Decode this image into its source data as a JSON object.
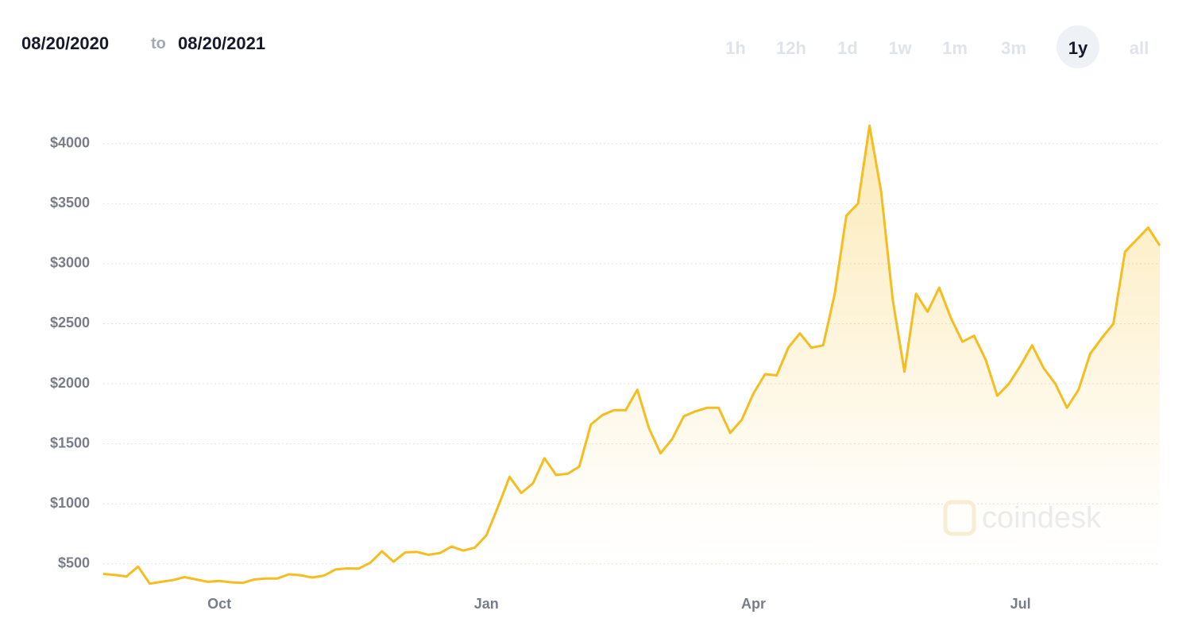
{
  "header": {
    "from": "08/20/2020",
    "to": "to",
    "until": "08/20/2021"
  },
  "ranges": [
    "1h",
    "12h",
    "1d",
    "1w",
    "1m",
    "3m",
    "1y",
    "all"
  ],
  "watermark": "coindesk",
  "chart_data": {
    "type": "line",
    "categories": [
      null,
      null,
      null,
      null,
      null,
      null,
      null,
      null,
      null,
      null,
      "Oct",
      null,
      null,
      null,
      null,
      null,
      null,
      null,
      null,
      null,
      null,
      null,
      null,
      null,
      null,
      null,
      null,
      null,
      null,
      null,
      null,
      null,
      null,
      "Jan",
      null,
      null,
      null,
      null,
      null,
      null,
      null,
      null,
      null,
      null,
      null,
      null,
      null,
      null,
      null,
      null,
      null,
      null,
      null,
      null,
      null,
      null,
      "Apr",
      null,
      null,
      null,
      null,
      null,
      null,
      null,
      null,
      null,
      null,
      null,
      null,
      null,
      null,
      null,
      null,
      null,
      null,
      null,
      null,
      null,
      null,
      "Jul",
      null,
      null,
      null,
      null,
      null,
      null,
      null,
      null,
      null,
      null,
      null,
      null
    ],
    "values": [
      416,
      408,
      395,
      477,
      335,
      350,
      365,
      389,
      370,
      350,
      358,
      346,
      341,
      370,
      378,
      378,
      413,
      405,
      386,
      402,
      453,
      462,
      460,
      510,
      605,
      518,
      595,
      600,
      575,
      590,
      645,
      610,
      635,
      738,
      975,
      1225,
      1090,
      1170,
      1380,
      1240,
      1250,
      1310,
      1660,
      1740,
      1780,
      1780,
      1950,
      1630,
      1420,
      1540,
      1730,
      1770,
      1800,
      1800,
      1590,
      1700,
      1920,
      2080,
      2070,
      2300,
      2420,
      2300,
      2320,
      2750,
      3400,
      3500,
      4150,
      3600,
      2700,
      2100,
      2750,
      2600,
      2800,
      2550,
      2350,
      2400,
      2200,
      1900,
      2000,
      2150,
      2320,
      2130,
      2000,
      1800,
      1950,
      2250,
      2380,
      2500,
      3100,
      3200,
      3300,
      3150
    ],
    "color": "#f5bd1f",
    "ylim": [
      300,
      4200
    ],
    "yticks": [
      {
        "value": 500,
        "label": "$500"
      },
      {
        "value": 1000,
        "label": "$1000"
      },
      {
        "value": 1500,
        "label": "$1500"
      },
      {
        "value": 2000,
        "label": "$2000"
      },
      {
        "value": 2500,
        "label": "$2500"
      },
      {
        "value": 3000,
        "label": "$3000"
      },
      {
        "value": 3500,
        "label": "$3500"
      },
      {
        "value": 4000,
        "label": "$4000"
      }
    ],
    "grid": true
  }
}
